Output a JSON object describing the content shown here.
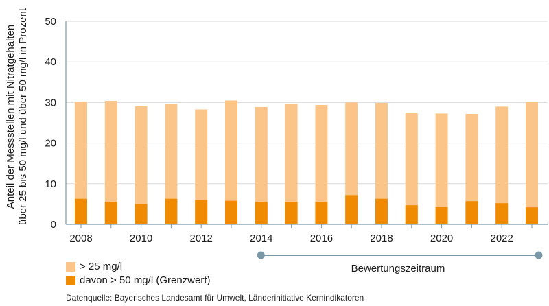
{
  "chart_data": {
    "type": "bar",
    "stacked": "overlay",
    "categories": [
      "2008",
      "2009",
      "2010",
      "2011",
      "2012",
      "2013",
      "2014",
      "2015",
      "2016",
      "2017",
      "2018",
      "2019",
      "2020",
      "2021",
      "2022",
      "2023"
    ],
    "x_tick_labels": [
      "2008",
      "2010",
      "2012",
      "2014",
      "2016",
      "2018",
      "2020",
      "2022"
    ],
    "series": [
      {
        "name": "> 25 mg/l",
        "color": "#fbc58a",
        "values": [
          30.2,
          30.4,
          29.1,
          29.7,
          28.3,
          30.5,
          28.9,
          29.6,
          29.4,
          30.0,
          29.9,
          27.4,
          27.3,
          27.2,
          29.0,
          30.1
        ]
      },
      {
        "name": "davon > 50 mg/l (Grenzwert)",
        "color": "#f08a00",
        "values": [
          6.3,
          5.5,
          5.0,
          6.3,
          6.0,
          5.8,
          5.5,
          5.5,
          5.5,
          7.2,
          6.3,
          4.7,
          4.3,
          5.7,
          5.2,
          4.2
        ]
      }
    ],
    "ylabel_line1": "Anteil der Messstellen mit Nitratgehalten",
    "ylabel_line2": "über 25 bis 50 mg/l und über 50 mg/l in Prozent",
    "ylim": [
      0,
      50
    ],
    "y_ticks": [
      "0",
      "10",
      "20",
      "30",
      "40",
      "50"
    ],
    "grid": true,
    "annotation": {
      "label": "Bewertungszeitraum",
      "from": "2014",
      "to": "2023",
      "color": "#7b98a6"
    }
  },
  "legend": {
    "item1": "> 25 mg/l",
    "item2": "davon > 50 mg/l (Grenzwert)"
  },
  "source": "Datenquelle: Bayerisches Landesamt für Umwelt, Länderinitiative Kernindikatoren"
}
